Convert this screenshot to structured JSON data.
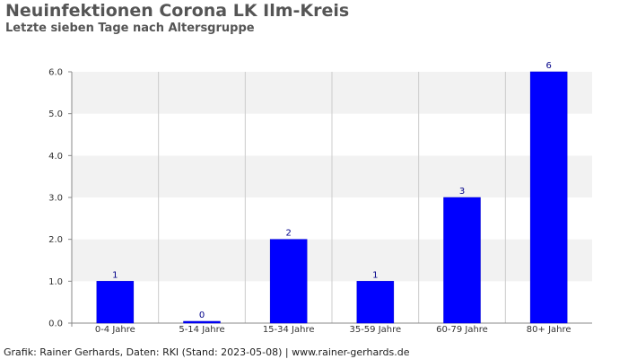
{
  "title": "Neuinfektionen Corona LK Ilm-Kreis",
  "subtitle": "Letzte sieben Tage nach Altersgruppe",
  "footer": "Grafik: Rainer Gerhards, Daten: RKI (Stand: 2023-05-08) | www.rainer-gerhards.de",
  "chart_data": {
    "type": "bar",
    "categories": [
      "0-4 Jahre",
      "5-14 Jahre",
      "15-34 Jahre",
      "35-59 Jahre",
      "60-79 Jahre",
      "80+ Jahre"
    ],
    "values": [
      1,
      0,
      2,
      1,
      3,
      6
    ],
    "data_labels": [
      "1",
      "0",
      "2",
      "1",
      "3",
      "6"
    ],
    "yticks": [
      "0.0",
      "1.0",
      "2.0",
      "3.0",
      "4.0",
      "5.0",
      "6.0"
    ],
    "ylim": [
      0,
      6
    ],
    "grid": true,
    "colors": {
      "bar": "#0000ff",
      "data_label": "#000088",
      "band": "#f2f2f2",
      "gridline": "#cccccc"
    }
  }
}
